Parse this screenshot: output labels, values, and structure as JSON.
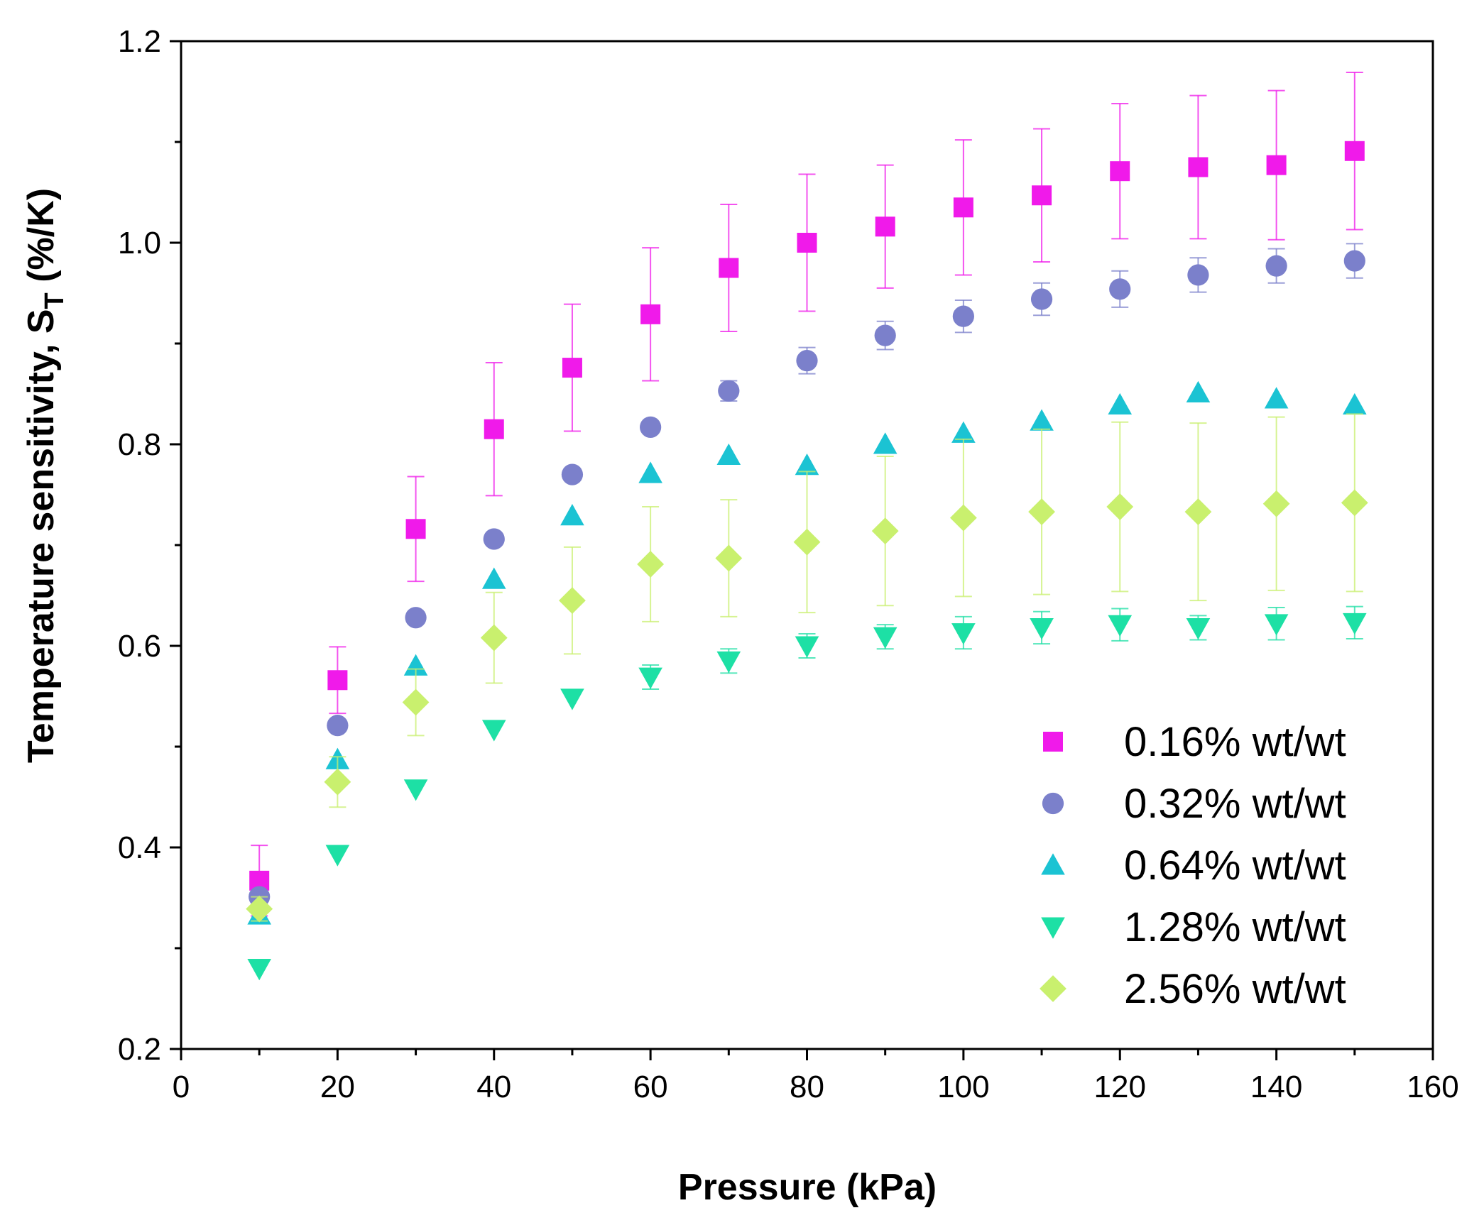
{
  "chart_data": {
    "type": "scatter",
    "title": "",
    "xlabel": "Pressure (kPa)",
    "ylabel_main": "Temperature sensitivity, S",
    "ylabel_sub": "T",
    "ylabel_tail": " (%/K)",
    "xlim": [
      0,
      160
    ],
    "ylim": [
      0.2,
      1.2
    ],
    "xticks": [
      0,
      20,
      40,
      60,
      80,
      100,
      120,
      140,
      160
    ],
    "yticks": [
      0.2,
      0.4,
      0.6,
      0.8,
      1.0,
      1.2
    ],
    "xtick_labels": [
      "0",
      "20",
      "40",
      "60",
      "80",
      "100",
      "120",
      "140",
      "160"
    ],
    "ytick_labels": [
      "0.2",
      "0.4",
      "0.6",
      "0.8",
      "1.0",
      "1.2"
    ],
    "legend_position": "bottom-right",
    "grid": false,
    "x": [
      10,
      20,
      30,
      40,
      50,
      60,
      70,
      80,
      90,
      100,
      110,
      120,
      130,
      140,
      150
    ],
    "series": [
      {
        "name": "0.16% wt/wt",
        "marker": "square",
        "color": "#F01AEA",
        "values": [
          0.367,
          0.566,
          0.716,
          0.815,
          0.876,
          0.929,
          0.975,
          1.0,
          1.016,
          1.035,
          1.047,
          1.071,
          1.075,
          1.077,
          1.091
        ],
        "errors": [
          0.035,
          0.033,
          0.052,
          0.066,
          0.063,
          0.066,
          0.063,
          0.068,
          0.061,
          0.067,
          0.066,
          0.067,
          0.071,
          0.074,
          0.078
        ]
      },
      {
        "name": "0.32% wt/wt",
        "marker": "circle",
        "color": "#7B80CB",
        "values": [
          0.351,
          0.521,
          0.628,
          0.706,
          0.77,
          0.817,
          0.853,
          0.883,
          0.908,
          0.927,
          0.944,
          0.954,
          0.968,
          0.977,
          0.982
        ],
        "errors": [
          0.008,
          0.008,
          0.008,
          0.008,
          0.008,
          0.008,
          0.01,
          0.013,
          0.014,
          0.016,
          0.016,
          0.018,
          0.017,
          0.017,
          0.017
        ]
      },
      {
        "name": "0.64% wt/wt",
        "marker": "triangle-up",
        "color": "#1BC3D3",
        "values": [
          0.333,
          0.487,
          0.58,
          0.666,
          0.729,
          0.771,
          0.789,
          0.779,
          0.8,
          0.811,
          0.823,
          0.839,
          0.851,
          0.845,
          0.839
        ],
        "errors": [
          0.008,
          0.008,
          0.008,
          0.008,
          0.008,
          0.008,
          0.008,
          0.008,
          0.008,
          0.008,
          0.008,
          0.008,
          0.008,
          0.008,
          0.008
        ]
      },
      {
        "name": "1.28% wt/wt",
        "marker": "triangle-down",
        "color": "#1DE0A5",
        "values": [
          0.28,
          0.393,
          0.458,
          0.517,
          0.548,
          0.569,
          0.585,
          0.6,
          0.609,
          0.613,
          0.618,
          0.621,
          0.618,
          0.622,
          0.623
        ],
        "errors": [
          0.008,
          0.008,
          0.008,
          0.008,
          0.008,
          0.012,
          0.012,
          0.012,
          0.012,
          0.016,
          0.016,
          0.016,
          0.012,
          0.016,
          0.016
        ]
      },
      {
        "name": "2.56% wt/wt",
        "marker": "diamond",
        "color": "#C9F06E",
        "values": [
          0.339,
          0.465,
          0.544,
          0.608,
          0.645,
          0.681,
          0.687,
          0.703,
          0.714,
          0.727,
          0.733,
          0.738,
          0.733,
          0.741,
          0.742
        ],
        "errors": [
          0.012,
          0.025,
          0.033,
          0.045,
          0.053,
          0.057,
          0.058,
          0.07,
          0.074,
          0.078,
          0.082,
          0.084,
          0.088,
          0.086,
          0.088
        ]
      }
    ]
  }
}
